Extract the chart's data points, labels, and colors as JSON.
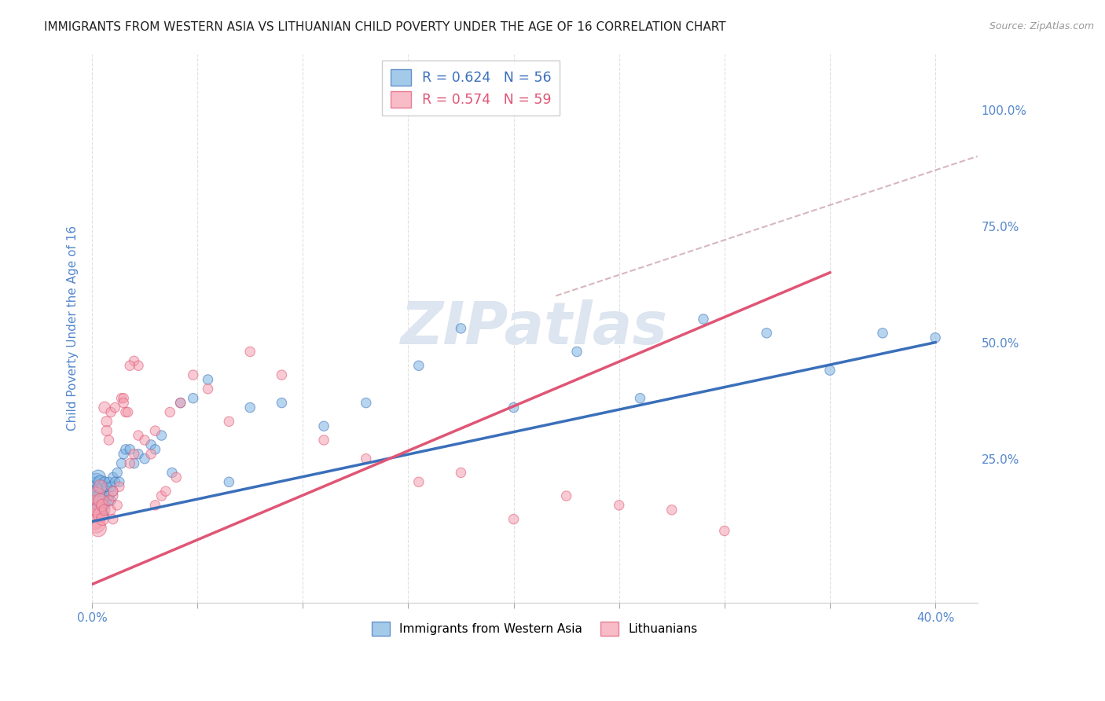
{
  "title": "IMMIGRANTS FROM WESTERN ASIA VS LITHUANIAN CHILD POVERTY UNDER THE AGE OF 16 CORRELATION CHART",
  "source": "Source: ZipAtlas.com",
  "ylabel": "Child Poverty Under the Age of 16",
  "xlim": [
    0.0,
    0.42
  ],
  "ylim": [
    -0.06,
    1.12
  ],
  "xtick_positions": [
    0.0,
    0.05,
    0.1,
    0.15,
    0.2,
    0.25,
    0.3,
    0.35,
    0.4
  ],
  "xtick_labels": [
    "0.0%",
    "",
    "",
    "",
    "",
    "",
    "",
    "",
    "40.0%"
  ],
  "ytick_vals_right": [
    1.0,
    0.75,
    0.5,
    0.25
  ],
  "ytick_labels_right": [
    "100.0%",
    "75.0%",
    "50.0%",
    "25.0%"
  ],
  "blue_color": "#7eb4e2",
  "pink_color": "#f4a0b0",
  "blue_line_color": "#3a6fba",
  "pink_line_color": "#e05575",
  "dashed_line_color": "#c8a0a8",
  "blue_R": "0.624",
  "blue_N": "56",
  "pink_R": "0.574",
  "pink_N": "59",
  "watermark": "ZIPatlas",
  "watermark_color": "#dce5f0",
  "legend_label_blue": "Immigrants from Western Asia",
  "legend_label_pink": "Lithuanians",
  "blue_line_x0": 0.0,
  "blue_line_y0": 0.115,
  "blue_line_x1": 0.4,
  "blue_line_y1": 0.5,
  "pink_line_x0": 0.0,
  "pink_line_y0": -0.02,
  "pink_line_x1": 0.35,
  "pink_line_y1": 0.65,
  "dashed_line_x0": 0.22,
  "dashed_line_y0": 0.6,
  "dashed_line_x1": 0.42,
  "dashed_line_y1": 0.9,
  "blue_scatter_x": [
    0.001,
    0.001,
    0.002,
    0.002,
    0.003,
    0.003,
    0.003,
    0.004,
    0.004,
    0.004,
    0.005,
    0.005,
    0.005,
    0.006,
    0.006,
    0.006,
    0.007,
    0.007,
    0.008,
    0.008,
    0.009,
    0.009,
    0.01,
    0.01,
    0.011,
    0.012,
    0.013,
    0.014,
    0.015,
    0.016,
    0.018,
    0.02,
    0.022,
    0.025,
    0.028,
    0.03,
    0.033,
    0.038,
    0.042,
    0.048,
    0.055,
    0.065,
    0.075,
    0.09,
    0.11,
    0.13,
    0.155,
    0.175,
    0.2,
    0.23,
    0.26,
    0.29,
    0.32,
    0.35,
    0.375,
    0.4
  ],
  "blue_scatter_y": [
    0.17,
    0.19,
    0.16,
    0.2,
    0.15,
    0.18,
    0.21,
    0.14,
    0.17,
    0.2,
    0.13,
    0.16,
    0.19,
    0.15,
    0.17,
    0.2,
    0.16,
    0.19,
    0.17,
    0.2,
    0.16,
    0.19,
    0.18,
    0.21,
    0.2,
    0.22,
    0.2,
    0.24,
    0.26,
    0.27,
    0.27,
    0.24,
    0.26,
    0.25,
    0.28,
    0.27,
    0.3,
    0.22,
    0.37,
    0.38,
    0.42,
    0.2,
    0.36,
    0.37,
    0.32,
    0.37,
    0.45,
    0.53,
    0.36,
    0.48,
    0.38,
    0.55,
    0.52,
    0.44,
    0.52,
    0.51
  ],
  "blue_scatter_sizes": [
    350,
    300,
    280,
    250,
    220,
    200,
    180,
    160,
    150,
    140,
    130,
    120,
    110,
    100,
    95,
    90,
    85,
    80,
    80,
    80,
    80,
    80,
    80,
    80,
    80,
    80,
    80,
    80,
    80,
    80,
    80,
    80,
    80,
    80,
    80,
    80,
    80,
    80,
    80,
    80,
    80,
    80,
    80,
    80,
    80,
    80,
    80,
    80,
    80,
    80,
    80,
    80,
    80,
    80,
    80,
    80
  ],
  "pink_scatter_x": [
    0.001,
    0.001,
    0.002,
    0.002,
    0.003,
    0.003,
    0.004,
    0.004,
    0.004,
    0.005,
    0.005,
    0.006,
    0.006,
    0.007,
    0.007,
    0.008,
    0.008,
    0.009,
    0.009,
    0.01,
    0.01,
    0.011,
    0.012,
    0.013,
    0.014,
    0.015,
    0.016,
    0.017,
    0.018,
    0.02,
    0.022,
    0.025,
    0.028,
    0.03,
    0.033,
    0.037,
    0.042,
    0.048,
    0.055,
    0.065,
    0.075,
    0.09,
    0.11,
    0.13,
    0.155,
    0.175,
    0.2,
    0.225,
    0.25,
    0.275,
    0.3,
    0.015,
    0.01,
    0.02,
    0.022,
    0.018,
    0.04,
    0.035,
    0.03
  ],
  "pink_scatter_y": [
    0.12,
    0.15,
    0.11,
    0.17,
    0.1,
    0.14,
    0.13,
    0.16,
    0.19,
    0.12,
    0.15,
    0.36,
    0.14,
    0.33,
    0.31,
    0.16,
    0.29,
    0.35,
    0.14,
    0.17,
    0.12,
    0.36,
    0.15,
    0.19,
    0.38,
    0.38,
    0.35,
    0.35,
    0.24,
    0.26,
    0.3,
    0.29,
    0.26,
    0.31,
    0.17,
    0.35,
    0.37,
    0.43,
    0.4,
    0.33,
    0.48,
    0.43,
    0.29,
    0.25,
    0.2,
    0.22,
    0.12,
    0.17,
    0.15,
    0.14,
    0.095,
    0.37,
    0.18,
    0.46,
    0.45,
    0.45,
    0.21,
    0.18,
    0.15
  ],
  "pink_scatter_sizes": [
    350,
    320,
    280,
    250,
    220,
    200,
    180,
    160,
    150,
    130,
    120,
    110,
    100,
    95,
    90,
    85,
    80,
    80,
    80,
    80,
    80,
    80,
    80,
    80,
    80,
    80,
    80,
    80,
    80,
    80,
    80,
    80,
    80,
    80,
    80,
    80,
    80,
    80,
    80,
    80,
    80,
    80,
    80,
    80,
    80,
    80,
    80,
    80,
    80,
    80,
    80,
    80,
    80,
    80,
    80,
    80,
    80,
    80,
    80
  ],
  "background_color": "#ffffff",
  "grid_color": "#dddddd",
  "title_fontsize": 11,
  "tick_color": "#5588cc"
}
